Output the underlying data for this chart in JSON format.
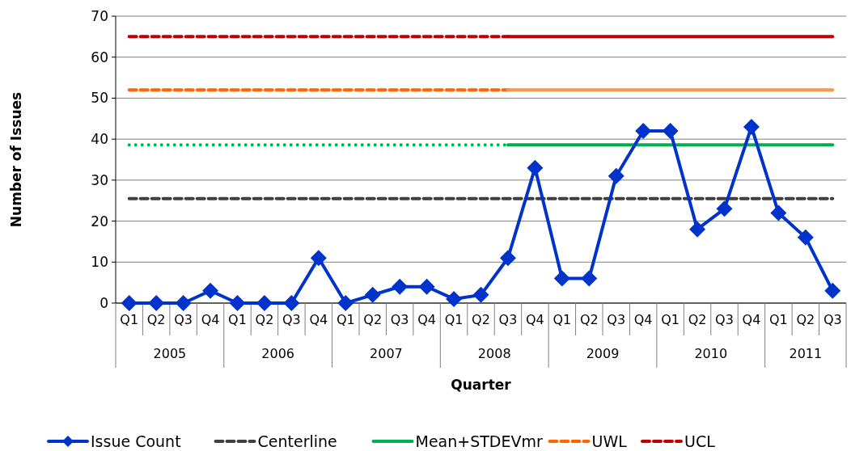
{
  "chart_data": {
    "type": "line",
    "xlabel": "Quarter",
    "ylabel": "Number of Issues",
    "categories": [
      "Q1",
      "Q2",
      "Q3",
      "Q4",
      "Q1",
      "Q2",
      "Q3",
      "Q4",
      "Q1",
      "Q2",
      "Q3",
      "Q4",
      "Q1",
      "Q2",
      "Q3",
      "Q4",
      "Q1",
      "Q2",
      "Q3",
      "Q4",
      "Q1",
      "Q2",
      "Q3",
      "Q4",
      "Q1",
      "Q2",
      "Q3"
    ],
    "annotations": [
      "2005",
      "2006",
      "2007",
      "2008",
      "2009",
      "2010",
      "2011"
    ],
    "ylim": [
      0,
      70
    ],
    "yticks": [
      0,
      10,
      20,
      30,
      40,
      50,
      60,
      70
    ],
    "grid": "y",
    "legend": "bottom",
    "series": [
      {
        "name": "Issue Count",
        "color": "#0033cc",
        "marker": "diamond",
        "line_style": "solid",
        "values": [
          0,
          0,
          0,
          3,
          0,
          0,
          0,
          11,
          0,
          2,
          4,
          4,
          1,
          2,
          11,
          33,
          6,
          6,
          31,
          42,
          42,
          18,
          23,
          43,
          22,
          16,
          3
        ]
      },
      {
        "name": "Centerline",
        "color": "#404040",
        "marker": "none",
        "line_style": "dashed",
        "values": [
          25.5,
          25.5,
          25.5,
          25.5,
          25.5,
          25.5,
          25.5,
          25.5,
          25.5,
          25.5,
          25.5,
          25.5,
          25.5,
          25.5,
          25.5,
          25.5,
          25.5,
          25.5,
          25.5,
          25.5,
          25.5,
          25.5,
          25.5,
          25.5,
          25.5,
          25.5,
          25.5
        ]
      },
      {
        "color": "#00b050",
        "marker": "none",
        "line_style": "dotted",
        "values": [
          38.6,
          38.6,
          38.6,
          38.6,
          38.6,
          38.6,
          38.6,
          38.6,
          38.6,
          38.6,
          38.6,
          38.6,
          38.6,
          38.6,
          38.6,
          null,
          null,
          null,
          null,
          null,
          null,
          null,
          null,
          null,
          null,
          null,
          null
        ]
      },
      {
        "name": "Mean+STDEVmr",
        "color": "#00b050",
        "marker": "none",
        "line_style": "solid",
        "values": [
          null,
          null,
          null,
          null,
          null,
          null,
          null,
          null,
          null,
          null,
          null,
          null,
          null,
          null,
          38.6,
          38.6,
          38.6,
          38.6,
          38.6,
          38.6,
          38.6,
          38.6,
          38.6,
          38.6,
          38.6,
          38.6,
          38.6
        ]
      },
      {
        "name": "UWL",
        "color": "#ff6600",
        "marker": "none",
        "line_style": "dashed",
        "values": [
          52,
          52,
          52,
          52,
          52,
          52,
          52,
          52,
          52,
          52,
          52,
          52,
          52,
          52,
          52,
          null,
          null,
          null,
          null,
          null,
          null,
          null,
          null,
          null,
          null,
          null,
          null
        ]
      },
      {
        "color": "#f79646",
        "marker": "none",
        "line_style": "solid",
        "values": [
          null,
          null,
          null,
          null,
          null,
          null,
          null,
          null,
          null,
          null,
          null,
          null,
          null,
          null,
          52,
          52,
          52,
          52,
          52,
          52,
          52,
          52,
          52,
          52,
          52,
          52,
          52
        ]
      },
      {
        "name": "UCL",
        "color": "#c00000",
        "marker": "none",
        "line_style": "dashed",
        "values": [
          65,
          65,
          65,
          65,
          65,
          65,
          65,
          65,
          65,
          65,
          65,
          65,
          65,
          65,
          65,
          null,
          null,
          null,
          null,
          null,
          null,
          null,
          null,
          null,
          null,
          null,
          null
        ]
      },
      {
        "color": "#c00000",
        "marker": "none",
        "line_style": "solid",
        "values": [
          null,
          null,
          null,
          null,
          null,
          null,
          null,
          null,
          null,
          null,
          null,
          null,
          null,
          null,
          65,
          65,
          65,
          65,
          65,
          65,
          65,
          65,
          65,
          65,
          65,
          65,
          65
        ]
      }
    ]
  }
}
